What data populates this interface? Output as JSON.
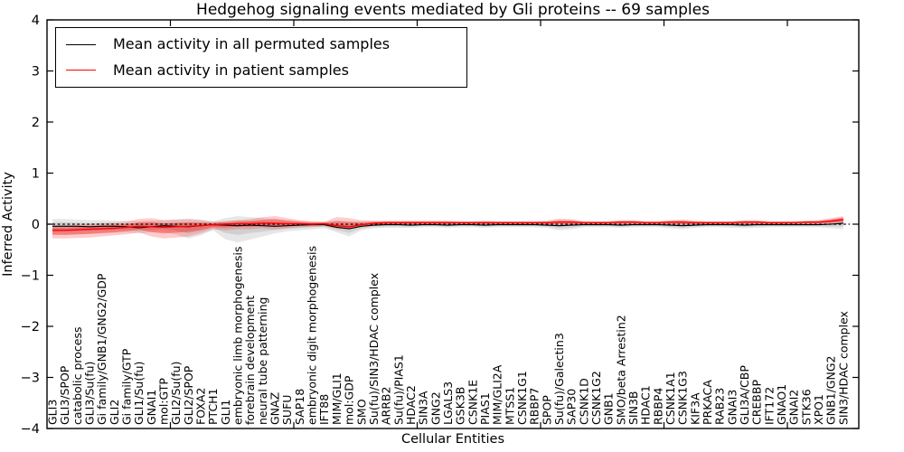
{
  "figure": {
    "title": "Hedgehog signaling events mediated by Gli proteins -- 69 samples",
    "xlabel": "Cellular Entities",
    "ylabel": "Inferred Activity"
  },
  "legend": {
    "entries": [
      {
        "label": "Mean activity in all permuted samples",
        "color": "#000000"
      },
      {
        "label": "Mean activity in patient samples",
        "color": "#ff0000"
      }
    ],
    "position": "upper left"
  },
  "chart_data": {
    "type": "line",
    "title": "Hedgehog signaling events mediated by Gli proteins -- 69 samples",
    "xlabel": "Cellular Entities",
    "ylabel": "Inferred Activity",
    "ylim": [
      -4,
      4
    ],
    "y_ticks": [
      4,
      3,
      2,
      1,
      0,
      -1,
      -2,
      -3,
      -4
    ],
    "grid": false,
    "legend_position": "upper left",
    "zero_line": {
      "style": "dashed",
      "color": "#000000",
      "y": 0
    },
    "colors": {
      "permuted": "#000000",
      "patient": "#ff0000",
      "permuted_band": "#888888",
      "patient_band": "#ff0000"
    },
    "categories": [
      "GLI3",
      "GLI3/SPOP",
      "catabolic process",
      "GLI3/Su(fu)",
      "Gi family/GNB1/GNG2/GDP",
      "GLI2",
      "Gi family/GTP",
      "GLI1/Su(fu)",
      "GNAI1",
      "mol:GTP",
      "GLI2/Su(fu)",
      "GLI2/SPOP",
      "FOXA2",
      "PTCH1",
      "GLI1",
      "embryonic limb morphogenesis",
      "forebrain development",
      "neural tube patterning",
      "GNAZ",
      "SUFU",
      "SAP18",
      "embryonic digit morphogenesis",
      "IFT88",
      "MIM/GLI1",
      "mol:GDP",
      "SMO",
      "Su(fu)/SIN3/HDAC complex",
      "ARRB2",
      "Su(fu)/PIAS1",
      "HDAC2",
      "SIN3A",
      "GNG2",
      "LGALS3",
      "GSK3B",
      "CSNK1E",
      "PIAS1",
      "MIM/GLI2A",
      "MTSS1",
      "CSNK1G1",
      "RBBP7",
      "SPOP",
      "Su(fu)/Galectin3",
      "SAP30",
      "CSNK1D",
      "CSNK1G2",
      "GNB1",
      "SMO/beta Arrestin2",
      "SIN3B",
      "HDAC1",
      "RBBP4",
      "CSNK1A1",
      "CSNK1G3",
      "KIF3A",
      "PRKACA",
      "RAB23",
      "GNAI3",
      "GLI3A/CBP",
      "CREBBP",
      "IFT172",
      "GNAO1",
      "GNAI2",
      "STK36",
      "XPO1",
      "GNB1/GNG2",
      "SIN3/HDAC complex"
    ],
    "series": [
      {
        "name": "Mean activity in all permuted samples",
        "color": "#000000",
        "values": [
          -0.04,
          -0.04,
          -0.04,
          -0.05,
          -0.04,
          -0.04,
          -0.05,
          -0.07,
          -0.05,
          -0.03,
          -0.04,
          -0.05,
          -0.03,
          -0.01,
          -0.02,
          -0.03,
          -0.02,
          -0.03,
          -0.04,
          -0.03,
          -0.02,
          -0.01,
          -0.01,
          -0.06,
          -0.09,
          -0.04,
          -0.02,
          -0.01,
          -0.01,
          -0.02,
          -0.01,
          -0.01,
          -0.02,
          -0.01,
          -0.01,
          -0.02,
          -0.01,
          -0.01,
          -0.01,
          -0.01,
          -0.02,
          -0.03,
          -0.02,
          -0.01,
          -0.01,
          -0.01,
          -0.02,
          -0.01,
          -0.01,
          -0.01,
          -0.02,
          -0.03,
          -0.02,
          -0.01,
          -0.01,
          -0.01,
          -0.02,
          -0.01,
          -0.01,
          -0.01,
          -0.01,
          -0.01,
          -0.01,
          0.0,
          0.02
        ]
      },
      {
        "name": "Mean activity in patient samples",
        "color": "#ff0000",
        "values": [
          -0.12,
          -0.12,
          -0.11,
          -0.1,
          -0.09,
          -0.08,
          -0.06,
          -0.04,
          -0.05,
          -0.06,
          -0.05,
          -0.04,
          -0.03,
          -0.01,
          0.0,
          0.01,
          0.01,
          0.02,
          0.02,
          0.01,
          0.01,
          0.0,
          0.01,
          -0.03,
          -0.05,
          -0.01,
          0.02,
          0.03,
          0.03,
          0.03,
          0.03,
          0.03,
          0.03,
          0.03,
          0.03,
          0.03,
          0.03,
          0.03,
          0.03,
          0.03,
          0.03,
          0.04,
          0.04,
          0.03,
          0.03,
          0.03,
          0.04,
          0.04,
          0.03,
          0.03,
          0.04,
          0.04,
          0.03,
          0.03,
          0.03,
          0.03,
          0.04,
          0.04,
          0.03,
          0.03,
          0.03,
          0.04,
          0.04,
          0.06,
          0.09
        ]
      }
    ],
    "bands": [
      {
        "name": "permuted samples range",
        "color": "#888888",
        "upper": [
          0.1,
          0.1,
          0.09,
          0.08,
          0.08,
          0.07,
          0.07,
          0.06,
          0.07,
          0.08,
          0.09,
          0.1,
          0.09,
          0.06,
          0.12,
          0.16,
          0.14,
          0.12,
          0.1,
          0.08,
          0.06,
          0.05,
          0.05,
          0.06,
          0.06,
          0.05,
          0.05,
          0.04,
          0.04,
          0.04,
          0.04,
          0.04,
          0.04,
          0.04,
          0.04,
          0.04,
          0.04,
          0.04,
          0.04,
          0.04,
          0.04,
          0.05,
          0.05,
          0.04,
          0.04,
          0.04,
          0.04,
          0.04,
          0.04,
          0.04,
          0.05,
          0.05,
          0.04,
          0.04,
          0.04,
          0.04,
          0.05,
          0.05,
          0.04,
          0.04,
          0.04,
          0.04,
          0.05,
          0.08,
          0.13
        ],
        "lower": [
          -0.2,
          -0.21,
          -0.2,
          -0.19,
          -0.18,
          -0.17,
          -0.16,
          -0.18,
          -0.16,
          -0.15,
          -0.2,
          -0.28,
          -0.22,
          -0.12,
          -0.3,
          -0.36,
          -0.3,
          -0.24,
          -0.18,
          -0.14,
          -0.12,
          -0.1,
          -0.08,
          -0.16,
          -0.24,
          -0.12,
          -0.08,
          -0.07,
          -0.07,
          -0.07,
          -0.06,
          -0.06,
          -0.07,
          -0.06,
          -0.06,
          -0.07,
          -0.06,
          -0.06,
          -0.06,
          -0.06,
          -0.07,
          -0.12,
          -0.1,
          -0.06,
          -0.06,
          -0.06,
          -0.07,
          -0.06,
          -0.06,
          -0.06,
          -0.08,
          -0.1,
          -0.07,
          -0.06,
          -0.06,
          -0.07,
          -0.08,
          -0.07,
          -0.06,
          -0.06,
          -0.06,
          -0.06,
          -0.06,
          -0.08,
          -0.1
        ]
      },
      {
        "name": "patient samples range",
        "color": "#ff0000",
        "upper": [
          -0.02,
          -0.02,
          -0.01,
          0.0,
          0.02,
          0.03,
          0.05,
          0.1,
          0.12,
          0.08,
          0.09,
          0.1,
          0.08,
          0.05,
          0.06,
          0.08,
          0.1,
          0.14,
          0.16,
          0.12,
          0.08,
          0.06,
          0.05,
          0.14,
          0.12,
          0.08,
          0.07,
          0.07,
          0.07,
          0.07,
          0.07,
          0.07,
          0.07,
          0.06,
          0.06,
          0.07,
          0.06,
          0.06,
          0.06,
          0.06,
          0.07,
          0.11,
          0.1,
          0.06,
          0.06,
          0.06,
          0.08,
          0.08,
          0.06,
          0.06,
          0.08,
          0.09,
          0.07,
          0.06,
          0.06,
          0.06,
          0.08,
          0.08,
          0.06,
          0.06,
          0.06,
          0.07,
          0.08,
          0.12,
          0.16
        ],
        "lower": [
          -0.28,
          -0.28,
          -0.27,
          -0.26,
          -0.24,
          -0.22,
          -0.2,
          -0.16,
          -0.24,
          -0.28,
          -0.26,
          -0.24,
          -0.18,
          -0.1,
          -0.12,
          -0.1,
          -0.1,
          -0.08,
          -0.1,
          -0.08,
          -0.06,
          -0.05,
          -0.04,
          -0.08,
          -0.1,
          -0.05,
          -0.03,
          -0.02,
          -0.02,
          -0.01,
          -0.01,
          -0.01,
          -0.01,
          -0.01,
          -0.01,
          -0.01,
          -0.01,
          -0.01,
          -0.01,
          -0.01,
          -0.01,
          -0.02,
          -0.02,
          -0.01,
          -0.01,
          -0.01,
          -0.01,
          -0.01,
          -0.01,
          -0.01,
          -0.01,
          -0.02,
          -0.01,
          -0.01,
          -0.01,
          -0.01,
          -0.01,
          -0.01,
          -0.01,
          -0.01,
          0.0,
          0.0,
          0.0,
          0.01,
          0.02
        ]
      }
    ]
  }
}
